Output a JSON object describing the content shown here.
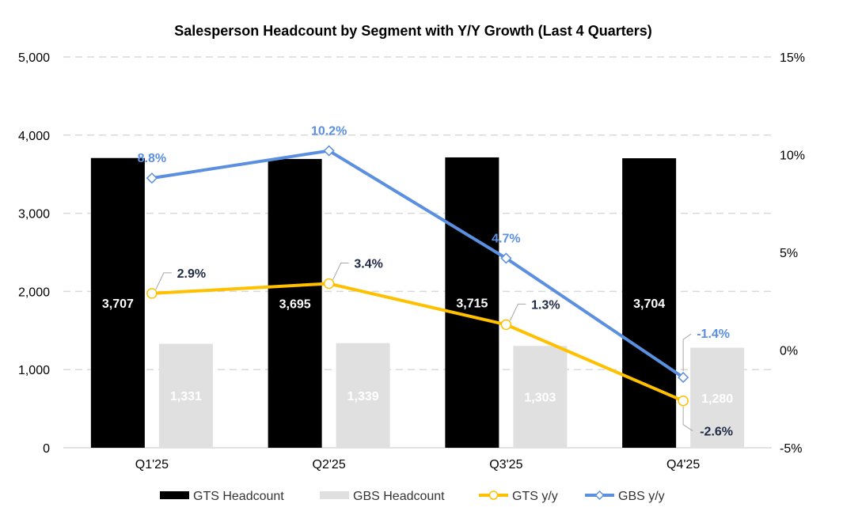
{
  "chart_data": {
    "type": "bar",
    "title": "Salesperson Headcount by Segment with Y/Y Growth (Last 4 Quarters)",
    "categories": [
      "Q1'25",
      "Q2'25",
      "Q3'25",
      "Q4'25"
    ],
    "y_left": {
      "min": 0,
      "max": 5000,
      "step": 1000,
      "ticks": [
        "0",
        "1,000",
        "2,000",
        "3,000",
        "4,000",
        "5,000"
      ]
    },
    "y_right": {
      "min": -5,
      "max": 15,
      "step": 5,
      "ticks": [
        "-5%",
        "0%",
        "5%",
        "10%",
        "15%"
      ]
    },
    "grid": true,
    "legend_position": "bottom",
    "series": [
      {
        "name": "GTS Headcount",
        "type": "bar",
        "axis": "left",
        "color": "#000000",
        "values": [
          3707,
          3695,
          3715,
          3704
        ],
        "labels": [
          "3,707",
          "3,695",
          "3,715",
          "3,704"
        ]
      },
      {
        "name": "GBS Headcount",
        "type": "bar",
        "axis": "left",
        "color": "#e0e0e0",
        "values": [
          1331,
          1339,
          1303,
          1280
        ],
        "labels": [
          "1,331",
          "1,339",
          "1,303",
          "1,280"
        ]
      },
      {
        "name": "GTS y/y",
        "type": "line",
        "axis": "right",
        "color": "#ffc000",
        "label_color": "#1f2a44",
        "marker": "circle",
        "values": [
          2.9,
          3.4,
          1.3,
          -2.6
        ],
        "labels": [
          "2.9%",
          "3.4%",
          "1.3%",
          "-2.6%"
        ]
      },
      {
        "name": "GBS y/y",
        "type": "line",
        "axis": "right",
        "color": "#5b8fe0",
        "label_color": "#5b8fe0",
        "marker": "diamond",
        "values": [
          8.8,
          10.2,
          4.7,
          -1.4
        ],
        "labels": [
          "8.8%",
          "10.2%",
          "4.7%",
          "-1.4%"
        ]
      }
    ]
  }
}
